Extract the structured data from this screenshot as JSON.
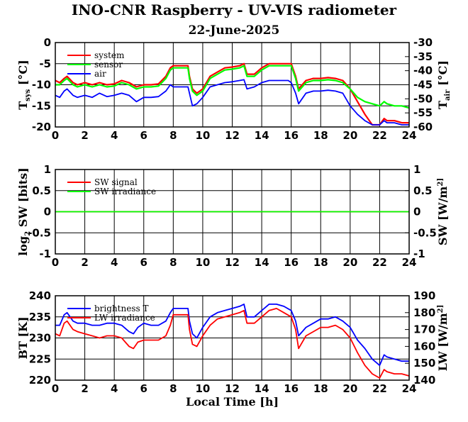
{
  "chart_data": [
    {
      "type": "line",
      "title": "INO-CNR Raspberry - UV-VIS radiometer",
      "subtitle": "22-June-2025",
      "ylabel": "T_sys [°C]",
      "y2label": "T_air [°C]",
      "xlim": [
        0,
        24
      ],
      "ylim": [
        -20,
        0
      ],
      "y2lim": [
        -60,
        -30
      ],
      "xticks": [
        "0",
        "2",
        "4",
        "6",
        "8",
        "10",
        "12",
        "14",
        "16",
        "18",
        "20",
        "22",
        "24"
      ],
      "yticks": [
        "0",
        "-5",
        "-10",
        "-15",
        "-20"
      ],
      "y2ticks": [
        "-30",
        "-35",
        "-40",
        "-45",
        "-50",
        "-55",
        "-60"
      ],
      "grid": true,
      "legend_position": "top-left",
      "series": [
        {
          "name": "system",
          "color": "#ff0000",
          "axis": "left",
          "x": [
            0,
            0.3,
            0.6,
            0.8,
            1.2,
            1.5,
            2,
            2.5,
            3,
            3.5,
            4,
            4.5,
            5,
            5.5,
            6,
            6.5,
            7,
            7.5,
            7.8,
            8,
            8.5,
            9,
            9.1,
            9.3,
            9.6,
            10,
            10.5,
            11,
            11.5,
            12,
            12.5,
            12.8,
            13,
            13.5,
            14,
            14.5,
            15,
            15.5,
            15.8,
            16,
            16.3,
            16.5,
            17,
            17.5,
            18,
            18.5,
            19,
            19.5,
            20,
            20.5,
            21,
            21.5,
            22,
            22.3,
            22.5,
            23,
            23.5,
            24
          ],
          "values": [
            -9,
            -9.5,
            -8.5,
            -8,
            -9.5,
            -10,
            -9.5,
            -10,
            -9.5,
            -10,
            -9.8,
            -9,
            -9.5,
            -10.5,
            -10,
            -10,
            -9.8,
            -8,
            -6,
            -5.5,
            -5.5,
            -5.5,
            -8,
            -11,
            -12,
            -11,
            -8,
            -7,
            -6,
            -5.8,
            -5.5,
            -5,
            -7.5,
            -7.5,
            -6,
            -5,
            -5,
            -5,
            -5,
            -5,
            -8,
            -11,
            -9,
            -8.5,
            -8.5,
            -8.3,
            -8.5,
            -9,
            -11,
            -14,
            -17,
            -19.5,
            -19.5,
            -18,
            -18.5,
            -18.5,
            -19,
            -19
          ]
        },
        {
          "name": "sensor",
          "color": "#00ff00",
          "axis": "left",
          "x": [
            0,
            0.3,
            0.6,
            0.8,
            1.2,
            1.5,
            2,
            2.5,
            3,
            3.5,
            4,
            4.5,
            5,
            5.5,
            6,
            6.5,
            7,
            7.5,
            7.8,
            8,
            8.5,
            9,
            9.1,
            9.3,
            9.6,
            10,
            10.5,
            11,
            11.5,
            12,
            12.5,
            12.8,
            13,
            13.5,
            14,
            14.5,
            15,
            15.5,
            15.8,
            16,
            16.3,
            16.5,
            17,
            17.5,
            18,
            18.5,
            19,
            19.5,
            20,
            20.5,
            21,
            21.5,
            22,
            22.3,
            22.5,
            23,
            23.5,
            24
          ],
          "values": [
            -10,
            -10,
            -9,
            -8.5,
            -10,
            -10.5,
            -10,
            -10.5,
            -10,
            -10.5,
            -10.3,
            -9.5,
            -10,
            -11,
            -10.5,
            -10.5,
            -10.3,
            -8.5,
            -6.5,
            -6,
            -6,
            -6,
            -8.5,
            -11.5,
            -12.5,
            -11.5,
            -8.5,
            -7.5,
            -6.5,
            -6.3,
            -6,
            -5.5,
            -8,
            -8,
            -6.5,
            -5.5,
            -5.5,
            -5.5,
            -5.5,
            -5.5,
            -8.5,
            -11.5,
            -9.5,
            -9,
            -9,
            -8.8,
            -9,
            -9.5,
            -11,
            -13,
            -14,
            -14.5,
            -15,
            -14,
            -14.5,
            -15,
            -15,
            -15.5
          ]
        },
        {
          "name": "air",
          "color": "#0000ff",
          "axis": "left",
          "x": [
            0,
            0.3,
            0.6,
            0.8,
            1.2,
            1.5,
            2,
            2.5,
            3,
            3.5,
            4,
            4.5,
            5,
            5.5,
            6,
            6.5,
            7,
            7.5,
            7.8,
            8,
            8.5,
            9,
            9.1,
            9.3,
            9.6,
            10,
            10.5,
            11,
            11.5,
            12,
            12.5,
            12.8,
            13,
            13.5,
            14,
            14.5,
            15,
            15.5,
            15.8,
            16,
            16.3,
            16.5,
            17,
            17.5,
            18,
            18.5,
            19,
            19.5,
            20,
            20.5,
            21,
            21.5,
            22,
            22.3,
            22.5,
            23,
            23.5,
            24
          ],
          "values": [
            -12.5,
            -13,
            -11.5,
            -11,
            -12.5,
            -13,
            -12.5,
            -13,
            -12,
            -12.8,
            -12.5,
            -12,
            -12.5,
            -14,
            -13,
            -13,
            -12.8,
            -11.5,
            -10,
            -10.5,
            -10.5,
            -10.5,
            -12,
            -15,
            -14.5,
            -13,
            -10.5,
            -10,
            -9.5,
            -9.3,
            -9,
            -8.8,
            -11,
            -10.5,
            -9.5,
            -9,
            -9,
            -9,
            -9,
            -9.5,
            -12,
            -14.5,
            -12,
            -11.5,
            -11.5,
            -11.3,
            -11.5,
            -12,
            -15,
            -17,
            -18.5,
            -19.5,
            -19.5,
            -18.5,
            -19,
            -19,
            -19.5,
            -19.5
          ]
        }
      ]
    },
    {
      "type": "line",
      "ylabel": "log_2 SW [bits]",
      "y2label": "SW [W/m^2]",
      "xlim": [
        0,
        24
      ],
      "ylim": [
        -1,
        1
      ],
      "y2lim": [
        -1,
        1
      ],
      "xticks": [
        "0",
        "2",
        "4",
        "6",
        "8",
        "10",
        "12",
        "14",
        "16",
        "18",
        "20",
        "22",
        "24"
      ],
      "yticks": [
        "1",
        "0.5",
        "0",
        "-0.5",
        "-1"
      ],
      "y2ticks": [
        "1",
        "0.5",
        "0",
        "-0.5",
        "-1"
      ],
      "grid": true,
      "legend_position": "top-left",
      "series": [
        {
          "name": "SW signal",
          "color": "#ff0000",
          "axis": "left",
          "x": [
            0,
            24
          ],
          "values": [
            0,
            0
          ]
        },
        {
          "name": "SW irradiance",
          "color": "#00ff00",
          "axis": "right",
          "x": [
            0,
            24
          ],
          "values": [
            0,
            0
          ]
        }
      ]
    },
    {
      "type": "line",
      "ylabel": "BT [K]",
      "y2label": "LW [W/m^2]",
      "xlabel": "Local Time [h]",
      "xlim": [
        0,
        24
      ],
      "ylim": [
        220,
        240
      ],
      "y2lim": [
        140,
        190
      ],
      "xticks": [
        "0",
        "2",
        "4",
        "6",
        "8",
        "10",
        "12",
        "14",
        "16",
        "18",
        "20",
        "22",
        "24"
      ],
      "yticks": [
        "240",
        "235",
        "230",
        "225",
        "220"
      ],
      "y2ticks": [
        "190",
        "180",
        "170",
        "160",
        "150",
        "140"
      ],
      "grid": true,
      "legend_position": "top-left",
      "series": [
        {
          "name": "brightness T",
          "color": "#0000ff",
          "axis": "left",
          "x": [
            0,
            0.3,
            0.6,
            0.8,
            1.2,
            1.5,
            2,
            2.5,
            3,
            3.5,
            4,
            4.5,
            5,
            5.3,
            5.6,
            6,
            6.5,
            7,
            7.5,
            7.8,
            8,
            8.5,
            9,
            9.1,
            9.3,
            9.6,
            10,
            10.5,
            11,
            11.5,
            12,
            12.5,
            12.8,
            13,
            13.5,
            14,
            14.5,
            15,
            15.5,
            16,
            16.3,
            16.5,
            17,
            17.5,
            18,
            18.5,
            19,
            19.5,
            20,
            20.5,
            21,
            21.5,
            22,
            22.3,
            22.5,
            23,
            23.5,
            24
          ],
          "values": [
            233,
            233,
            235.5,
            236,
            234,
            233.5,
            233.5,
            233,
            233,
            233.5,
            233.5,
            233,
            231.5,
            231,
            232.5,
            233.5,
            233,
            233,
            234,
            236,
            237,
            237,
            237,
            234,
            231,
            230,
            232.5,
            235,
            236,
            236.5,
            237,
            237.5,
            238,
            235,
            235,
            236.5,
            238,
            238,
            237.5,
            236.5,
            234,
            230.5,
            232.5,
            233.5,
            234.5,
            234.5,
            235,
            234,
            232.5,
            229.5,
            227.5,
            225,
            223.5,
            226,
            225.5,
            225,
            224.5,
            224.5
          ]
        },
        {
          "name": "LW irradiance",
          "color": "#ff0000",
          "axis": "left",
          "x": [
            0,
            0.3,
            0.6,
            0.8,
            1.2,
            1.5,
            2,
            2.5,
            3,
            3.5,
            4,
            4.5,
            5,
            5.3,
            5.6,
            6,
            6.5,
            7,
            7.5,
            7.8,
            8,
            8.5,
            9,
            9.1,
            9.3,
            9.6,
            10,
            10.5,
            11,
            11.5,
            12,
            12.5,
            12.8,
            13,
            13.5,
            14,
            14.5,
            15,
            15.5,
            16,
            16.3,
            16.5,
            17,
            17.5,
            18,
            18.5,
            19,
            19.5,
            20,
            20.5,
            21,
            21.5,
            22,
            22.3,
            22.5,
            23,
            23.5,
            24
          ],
          "values": [
            231,
            230.5,
            233.5,
            234,
            232,
            231.5,
            231,
            230.5,
            230,
            230.5,
            230.5,
            230,
            228,
            227.5,
            229,
            229.5,
            229.5,
            229.5,
            230.5,
            233,
            235.5,
            235.5,
            235.5,
            232,
            228.5,
            228,
            230.5,
            233,
            234.5,
            235,
            235.5,
            236,
            236.5,
            233.5,
            233.5,
            235,
            236.5,
            237,
            236,
            235,
            232,
            227.5,
            230.5,
            231.5,
            232.5,
            232.5,
            233,
            232,
            230,
            226.5,
            223.5,
            221.5,
            220.5,
            222.5,
            222,
            221.5,
            221.5,
            221
          ]
        }
      ]
    }
  ]
}
